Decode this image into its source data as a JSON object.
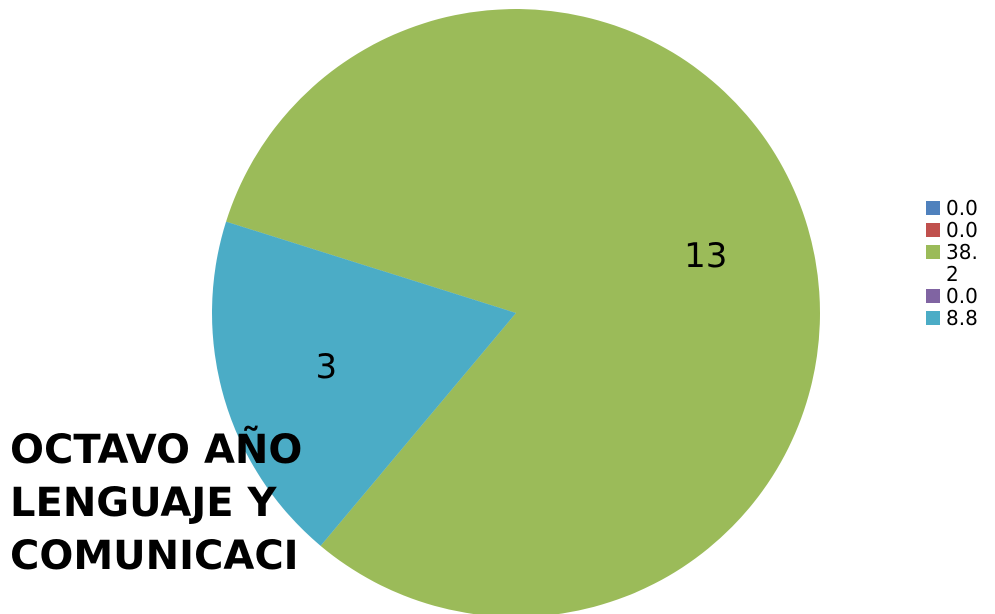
{
  "chart_data": {
    "type": "pie",
    "title": "OCTAVO AÑO LENGUAJE Y COMUNICACI",
    "legend_position": "right",
    "slices": [
      {
        "legend": "0.0",
        "value": 0,
        "data_label": "",
        "color": "#4F81BD"
      },
      {
        "legend": "0.0",
        "value": 0,
        "data_label": "",
        "color": "#C0504D"
      },
      {
        "legend": "38. 2",
        "value": 13,
        "data_label": "13",
        "color": "#9BBB59"
      },
      {
        "legend": "0.0",
        "value": 0,
        "data_label": "",
        "color": "#8064A2"
      },
      {
        "legend": "8.8",
        "value": 3,
        "data_label": "3",
        "color": "#4BACC6"
      }
    ]
  }
}
